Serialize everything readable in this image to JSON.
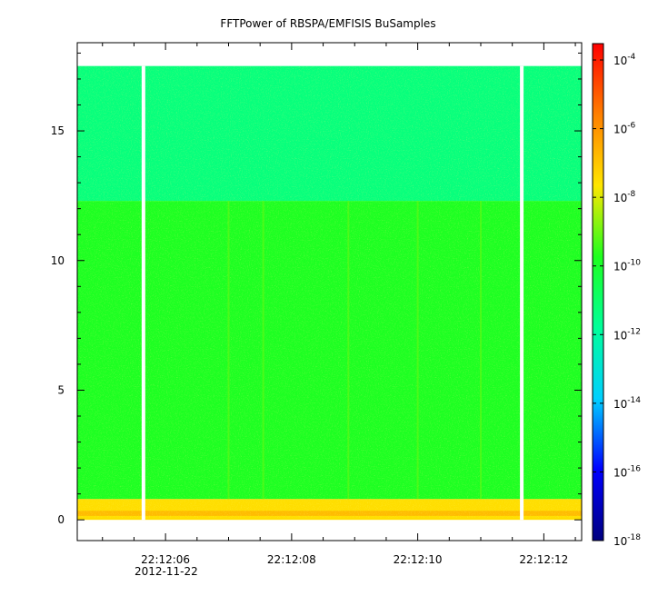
{
  "chart_data": {
    "type": "heatmap",
    "title": "FFTPower of RBSPA/EMFISIS  BuSamples",
    "x": {
      "start": "22:12:04.6",
      "end": "22:12:12.6",
      "ticks": [
        "22:12:06",
        "22:12:08",
        "22:12:10",
        "22:12:12"
      ],
      "tick_seconds": [
        6,
        8,
        10,
        12
      ],
      "range_seconds": [
        4.6,
        12.6
      ],
      "date_label": "2012-11-22"
    },
    "y": {
      "range": [
        -0.8,
        18.4
      ],
      "ticks": [
        "0",
        "5",
        "10",
        "15"
      ],
      "tick_values": [
        0,
        5,
        10,
        15
      ]
    },
    "colorbar": {
      "scale": "log",
      "range": [
        1e-18,
        0.0003
      ],
      "ticks": [
        {
          "base": "10",
          "exp": "-4"
        },
        {
          "base": "10",
          "exp": "-6"
        },
        {
          "base": "10",
          "exp": "-8"
        },
        {
          "base": "10",
          "exp": "-10"
        },
        {
          "base": "10",
          "exp": "-12"
        },
        {
          "base": "10",
          "exp": "-14"
        },
        {
          "base": "10",
          "exp": "-16"
        },
        {
          "base": "10",
          "exp": "-18"
        }
      ],
      "tick_exponents": [
        -4,
        -6,
        -8,
        -10,
        -12,
        -14,
        -16,
        -18
      ],
      "colormap": [
        "#00007f",
        "#0000ff",
        "#00d0ff",
        "#00ff9a",
        "#1eff1e",
        "#ffe600",
        "#ff7f00",
        "#ff0000"
      ]
    },
    "data_extent": {
      "y_top": 17.5,
      "y_bottom": 0
    },
    "bands": [
      {
        "y_from": 12.3,
        "y_to": 17.5,
        "log10_power": -11.3
      },
      {
        "y_from": 0.8,
        "y_to": 12.3,
        "log10_power": -9.8
      },
      {
        "y_from": 0.0,
        "y_to": 0.8,
        "log10_power": -7.5
      }
    ],
    "gaps_seconds": [
      5.65,
      11.65
    ],
    "vertical_streaks_seconds": [
      7.0,
      7.55,
      8.9,
      10.0,
      11.0
    ]
  }
}
